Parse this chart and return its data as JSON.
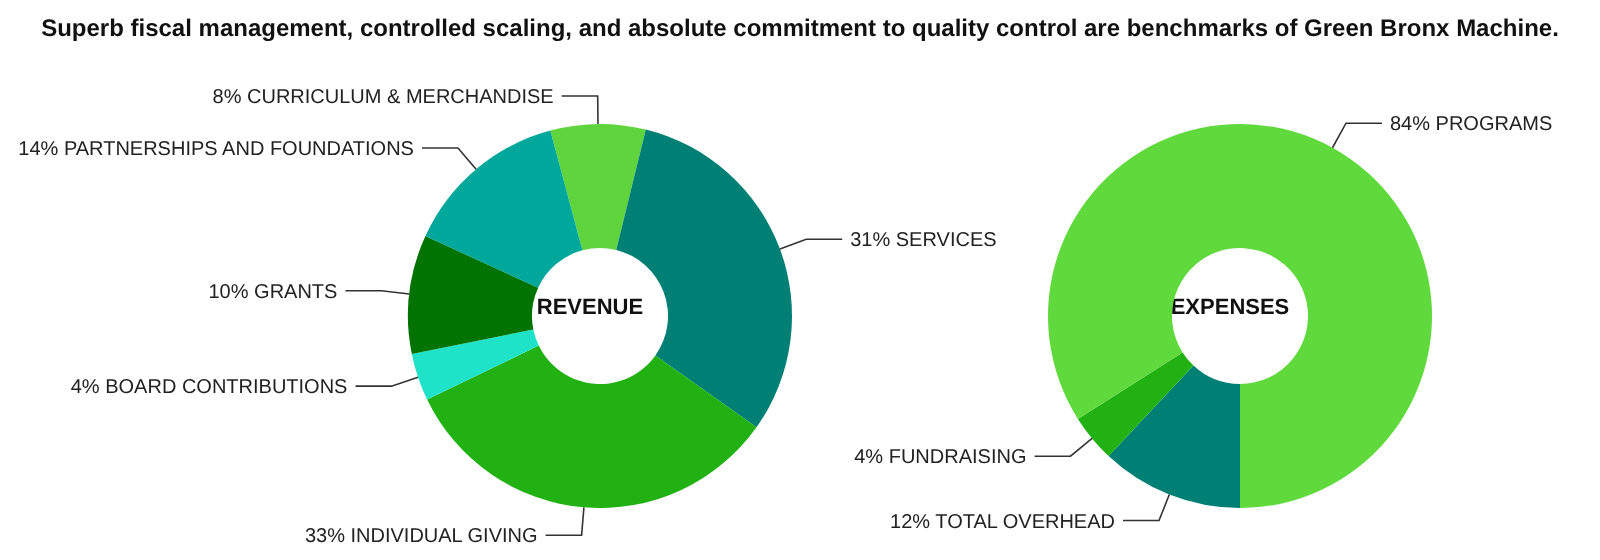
{
  "chart_data": [
    {
      "type": "donut",
      "title": "REVENUE",
      "annotations": [
        "Superb fiscal management, controlled scaling, and absolute commitment to quality control are benchmarks of Green Bronx Machine."
      ],
      "categories": [
        "CURRICULUM & MERCHANDISE",
        "SERVICES",
        "INDIVIDUAL GIVING",
        "BOARD CONTRIBUTIONS",
        "GRANTS",
        "PARTNERSHIPS AND FOUNDATIONS"
      ],
      "values": [
        8,
        31,
        33,
        4,
        10,
        14
      ],
      "value_labels": [
        "8%",
        "31%",
        "33%",
        "4%",
        "10%",
        "14%"
      ],
      "colors": [
        "#5fd43c",
        "#007f74",
        "#22b113",
        "#1ee3c9",
        "#007300",
        "#00a89c"
      ]
    },
    {
      "type": "donut",
      "title": "EXPENSES",
      "categories": [
        "TOTAL OVERHEAD",
        "FUNDRAISING",
        "PROGRAMS"
      ],
      "values": [
        12,
        4,
        84
      ],
      "value_labels": [
        "12%",
        "4%",
        "84%"
      ],
      "colors": [
        "#007f74",
        "#22b113",
        "#5fd93c"
      ]
    }
  ]
}
